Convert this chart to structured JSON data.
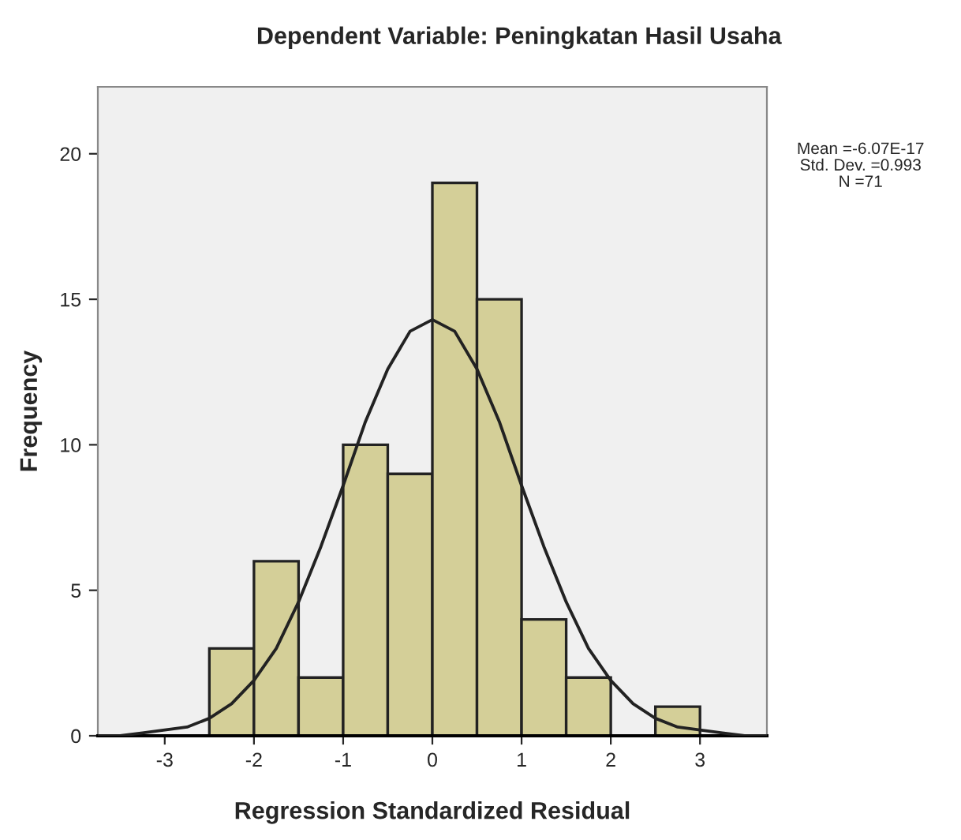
{
  "chart_data": {
    "type": "histogram",
    "title": "Dependent Variable: Peningkatan Hasil Usaha",
    "xlabel": "Regression Standardized Residual",
    "ylabel": "Frequency",
    "annotations": [
      "Mean =-6.07E-17",
      "Std. Dev. =0.993",
      "N =71"
    ],
    "series": [
      {
        "color": "#d4cf98",
        "bins": [
          -2.5,
          -2.0,
          -1.5,
          -1.0,
          -0.5,
          0.0,
          0.5,
          1.0,
          1.5,
          2.0,
          2.5,
          3.0
        ],
        "values": [
          3,
          6,
          2,
          10,
          9,
          19,
          15,
          4,
          2,
          0,
          1
        ]
      },
      {
        "type": "line",
        "color": "#222222",
        "x": [
          -3.75,
          -3.5,
          -3.25,
          -3.0,
          -2.75,
          -2.5,
          -2.25,
          -2.0,
          -1.75,
          -1.5,
          -1.25,
          -1.0,
          -0.75,
          -0.5,
          -0.25,
          0.0,
          0.25,
          0.5,
          0.75,
          1.0,
          1.25,
          1.5,
          1.75,
          2.0,
          2.25,
          2.5,
          2.75,
          3.0,
          3.25,
          3.5,
          3.75
        ],
        "values": [
          0.0,
          0.0,
          0.1,
          0.2,
          0.3,
          0.6,
          1.1,
          1.9,
          3.0,
          4.6,
          6.5,
          8.6,
          10.8,
          12.6,
          13.9,
          14.3,
          13.9,
          12.6,
          10.8,
          8.6,
          6.5,
          4.6,
          3.0,
          1.9,
          1.1,
          0.6,
          0.3,
          0.2,
          0.1,
          0.0,
          0.0
        ]
      }
    ],
    "xlim": [
      -3.75,
      3.75
    ],
    "xticks": [
      -3,
      -2,
      -1,
      0,
      1,
      2,
      3
    ],
    "ylim": [
      0,
      22.3
    ],
    "yticks": [
      0,
      5,
      10,
      15,
      20
    ],
    "grid": false,
    "legend": false
  }
}
